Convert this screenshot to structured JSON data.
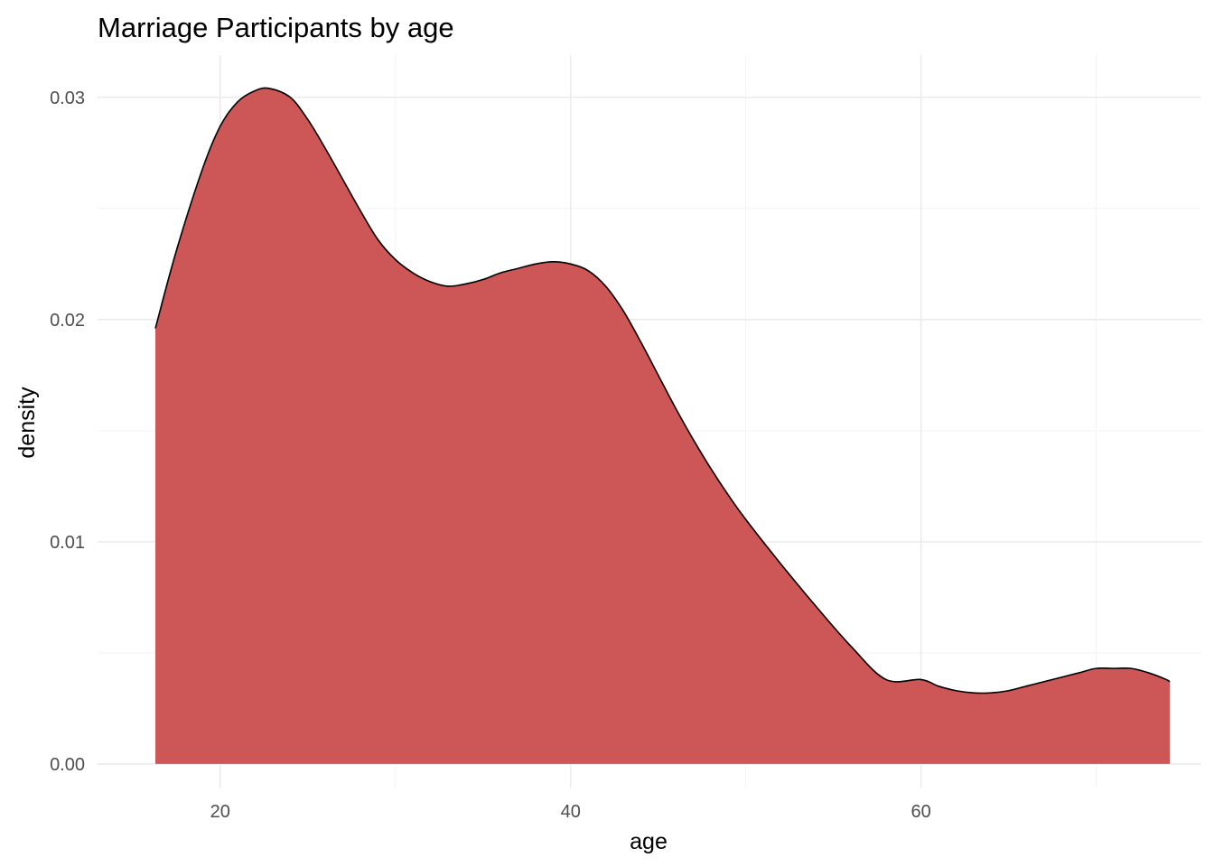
{
  "chart_data": {
    "type": "area",
    "title": "Marriage Participants by age",
    "xlabel": "age",
    "ylabel": "density",
    "xlim": [
      13,
      76
    ],
    "ylim": [
      -0.0011,
      0.0319
    ],
    "x_ticks": [
      20,
      40,
      60
    ],
    "x_tick_labels": [
      "20",
      "40",
      "60"
    ],
    "x_minor_ticks": [
      30,
      50,
      70
    ],
    "y_ticks": [
      0.0,
      0.01,
      0.02,
      0.03
    ],
    "y_tick_labels": [
      "0.00",
      "0.01",
      "0.02",
      "0.03"
    ],
    "y_minor_ticks": [
      0.005,
      0.015,
      0.025
    ],
    "grid": true,
    "legend": "none",
    "fill_color": "#cd5656",
    "line_color": "#000000",
    "series": [
      {
        "x": [
          16.3,
          17.5,
          19,
          20,
          21,
          22,
          22.8,
          24,
          25,
          26,
          27,
          28,
          29,
          30,
          31,
          32,
          33,
          34,
          35,
          36,
          37,
          38,
          39,
          40,
          41,
          42,
          43,
          44,
          45,
          46,
          47,
          48,
          49,
          50,
          52,
          54,
          56,
          58,
          60,
          61,
          62,
          63,
          64,
          65,
          66,
          67,
          68,
          69,
          70,
          71,
          72,
          73,
          74,
          74.2
        ],
        "y": [
          0.0196,
          0.0231,
          0.0268,
          0.0287,
          0.0298,
          0.0303,
          0.0304,
          0.03,
          0.029,
          0.0277,
          0.0263,
          0.0249,
          0.0236,
          0.0227,
          0.0221,
          0.0217,
          0.0215,
          0.0216,
          0.0218,
          0.0221,
          0.0223,
          0.0225,
          0.0226,
          0.0225,
          0.0222,
          0.0215,
          0.0204,
          0.019,
          0.0175,
          0.016,
          0.0146,
          0.0133,
          0.0121,
          0.011,
          0.009,
          0.0071,
          0.0053,
          0.0038,
          0.0038,
          0.0035,
          0.0033,
          0.0032,
          0.0032,
          0.0033,
          0.0035,
          0.0037,
          0.0039,
          0.0041,
          0.0043,
          0.0043,
          0.0043,
          0.0041,
          0.0038,
          0.0037
        ]
      }
    ]
  }
}
